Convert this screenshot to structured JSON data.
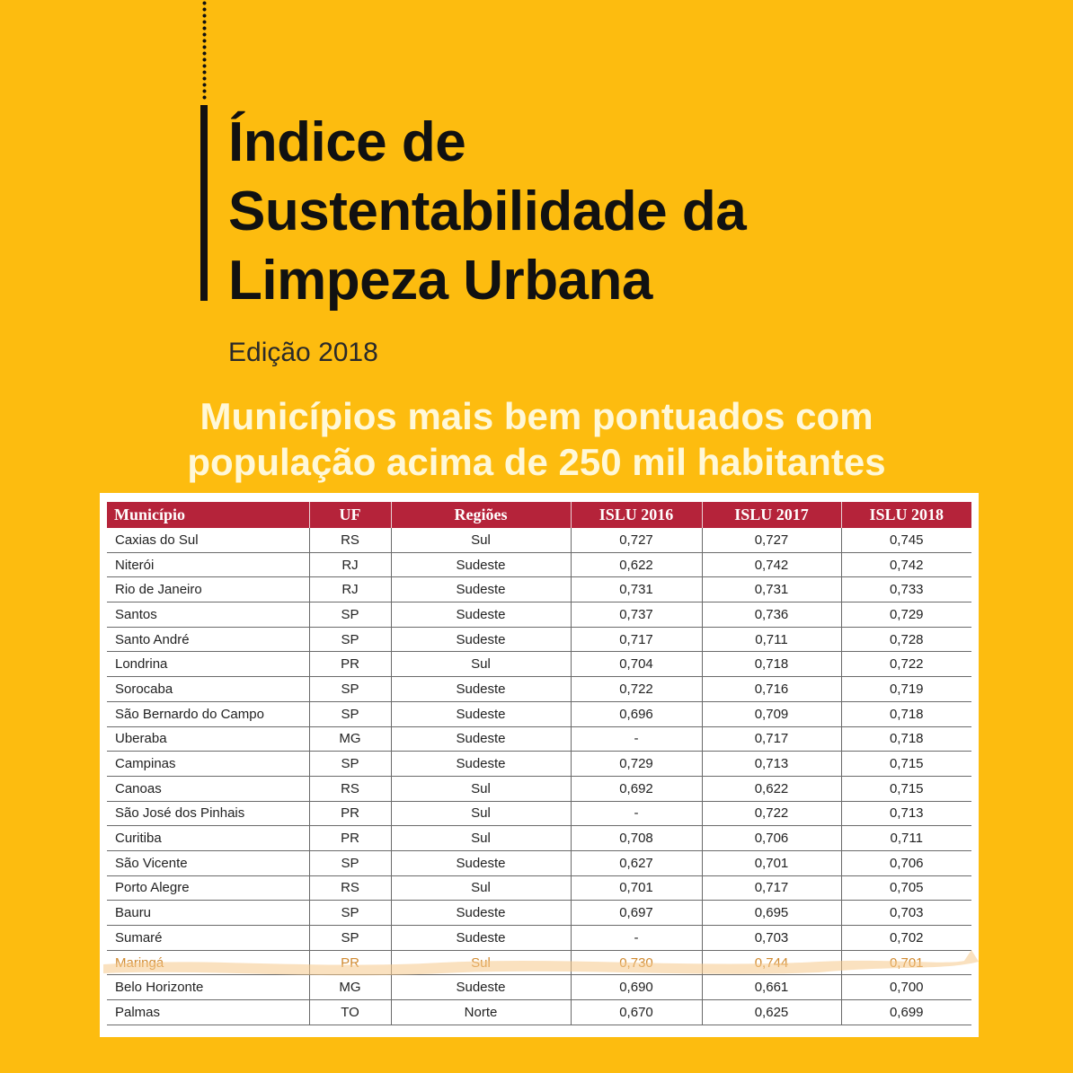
{
  "header": {
    "title_line1": "Índice de",
    "title_line2": "Sustentabilidade da",
    "title_line3": "Limpeza Urbana",
    "edition": "Edição 2018"
  },
  "subtitle": {
    "line1": "Municípios mais bem pontuados com",
    "line2": "população acima de 250 mil habitantes"
  },
  "table": {
    "columns": [
      "Município",
      "UF",
      "Regiões",
      "ISLU 2016",
      "ISLU 2017",
      "ISLU 2018"
    ],
    "rows": [
      [
        "Caxias do Sul",
        "RS",
        "Sul",
        "0,727",
        "0,727",
        "0,745"
      ],
      [
        "Niterói",
        "RJ",
        "Sudeste",
        "0,622",
        "0,742",
        "0,742"
      ],
      [
        "Rio de Janeiro",
        "RJ",
        "Sudeste",
        "0,731",
        "0,731",
        "0,733"
      ],
      [
        "Santos",
        "SP",
        "Sudeste",
        "0,737",
        "0,736",
        "0,729"
      ],
      [
        "Santo André",
        "SP",
        "Sudeste",
        "0,717",
        "0,711",
        "0,728"
      ],
      [
        "Londrina",
        "PR",
        "Sul",
        "0,704",
        "0,718",
        "0,722"
      ],
      [
        "Sorocaba",
        "SP",
        "Sudeste",
        "0,722",
        "0,716",
        "0,719"
      ],
      [
        "São Bernardo do Campo",
        "SP",
        "Sudeste",
        "0,696",
        "0,709",
        "0,718"
      ],
      [
        "Uberaba",
        "MG",
        "Sudeste",
        "-",
        "0,717",
        "0,718"
      ],
      [
        "Campinas",
        "SP",
        "Sudeste",
        "0,729",
        "0,713",
        "0,715"
      ],
      [
        "Canoas",
        "RS",
        "Sul",
        "0,692",
        "0,622",
        "0,715"
      ],
      [
        "São José dos Pinhais",
        "PR",
        "Sul",
        "-",
        "0,722",
        "0,713"
      ],
      [
        "Curitiba",
        "PR",
        "Sul",
        "0,708",
        "0,706",
        "0,711"
      ],
      [
        "São Vicente",
        "SP",
        "Sudeste",
        "0,627",
        "0,701",
        "0,706"
      ],
      [
        "Porto Alegre",
        "RS",
        "Sul",
        "0,701",
        "0,717",
        "0,705"
      ],
      [
        "Bauru",
        "SP",
        "Sudeste",
        "0,697",
        "0,695",
        "0,703"
      ],
      [
        "Sumaré",
        "SP",
        "Sudeste",
        "-",
        "0,703",
        "0,702"
      ],
      [
        "Maringá",
        "PR",
        "Sul",
        "0,730",
        "0,744",
        "0,701"
      ],
      [
        "Belo Horizonte",
        "MG",
        "Sudeste",
        "0,690",
        "0,661",
        "0,700"
      ],
      [
        "Palmas",
        "TO",
        "Norte",
        "0,670",
        "0,625",
        "0,699"
      ]
    ],
    "highlighted_row": 17
  },
  "colors": {
    "background": "#FDBC0F",
    "header_row": "#B5233A",
    "highlight": "#F5C98A",
    "subtitle_text": "#FFF8D8"
  }
}
